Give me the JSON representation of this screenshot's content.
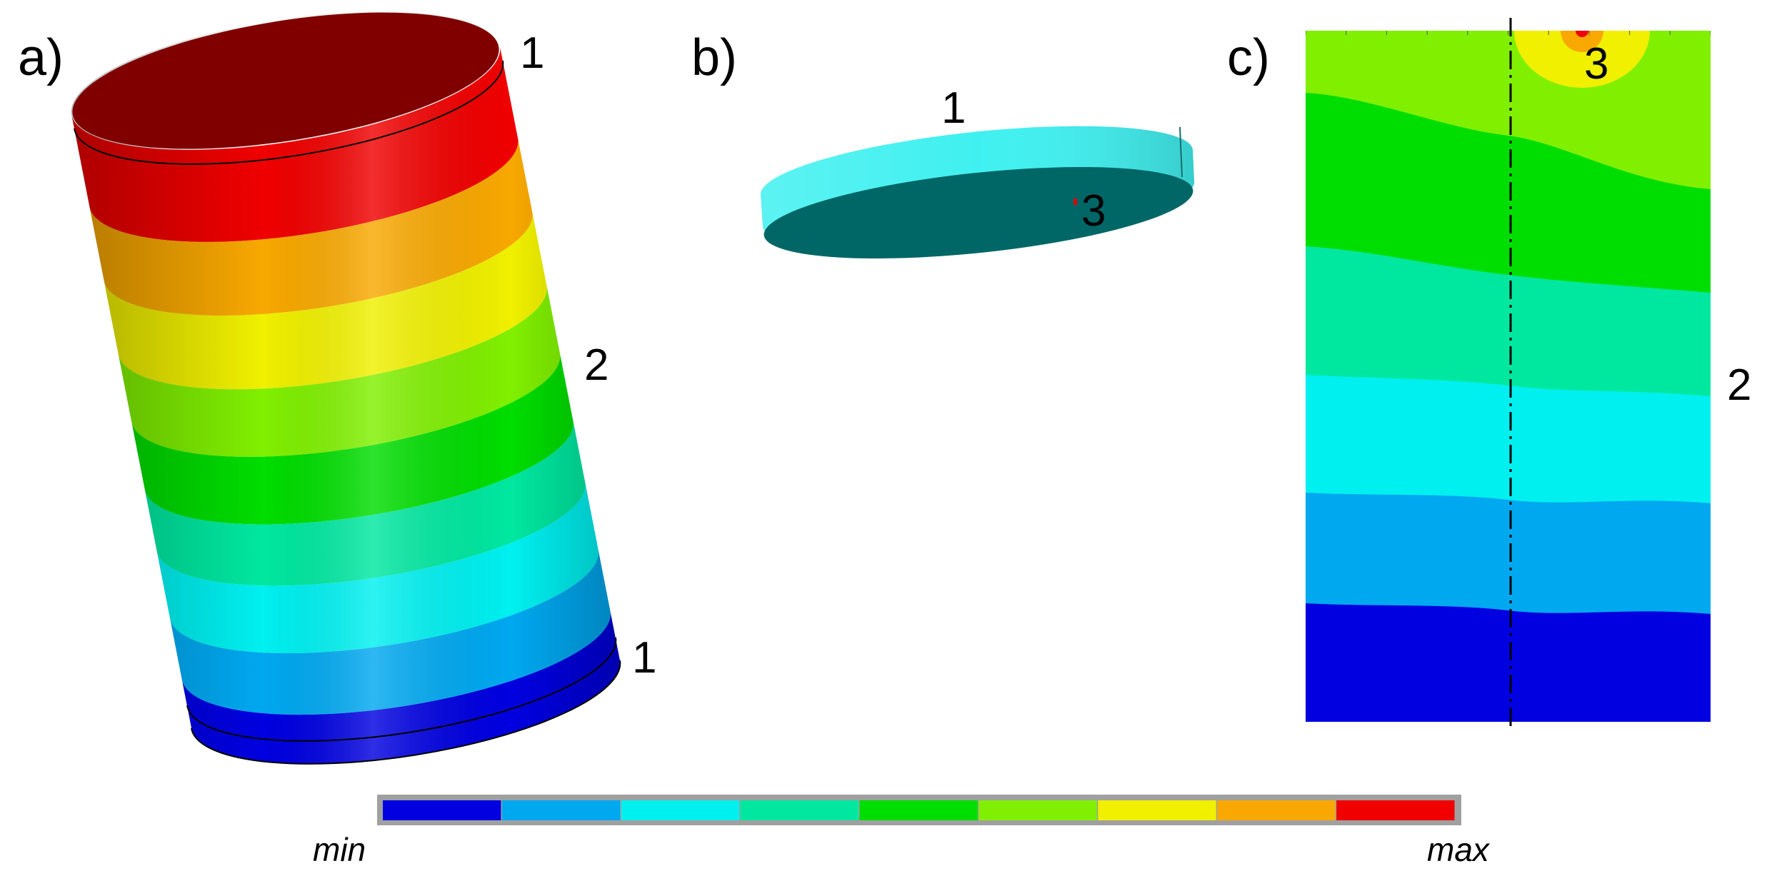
{
  "panels": {
    "a": {
      "label": "a)",
      "markers": {
        "top": "1",
        "middle": "2",
        "bottom": "1"
      },
      "bands": [
        "#0000e0",
        "#00a8f0",
        "#00f0f0",
        "#00e8a0",
        "#00dd00",
        "#80f000",
        "#f0f000",
        "#f8a800",
        "#f00000"
      ]
    },
    "b": {
      "label": "b)",
      "markers": {
        "rim": "1",
        "point": "3"
      },
      "side_color": "#40f0f0",
      "face_color": "#006666"
    },
    "c": {
      "label": "c)",
      "markers": {
        "hotspot": "3",
        "side": "2"
      },
      "levels": [
        "#0000e0",
        "#00a8f0",
        "#00f0f0",
        "#00e8a0",
        "#00dd00",
        "#80f000",
        "#f0f000",
        "#f8a800",
        "#f00000"
      ]
    }
  },
  "legend": {
    "min_label": "min",
    "max_label": "max",
    "colors": [
      "#0000e0",
      "#00a8f0",
      "#00f0f0",
      "#00e8a0",
      "#00dd00",
      "#80f000",
      "#f0f000",
      "#f8a800",
      "#f00000"
    ]
  }
}
